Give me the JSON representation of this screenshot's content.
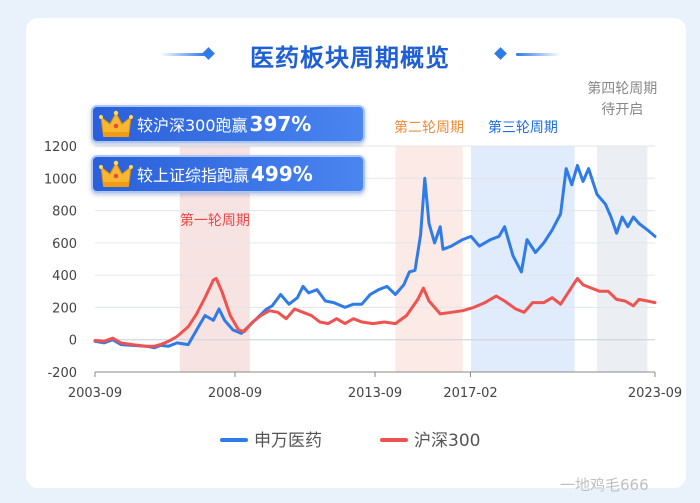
{
  "title": "医药板块周期概览",
  "badges": [
    {
      "text": "较沪深300跑赢",
      "value": "397%"
    },
    {
      "text": "较上证综指跑赢",
      "value": "499%"
    }
  ],
  "watermark": "一地鸡毛666",
  "colors": {
    "accent": "#1f5fd6",
    "series1": "#2f7be8",
    "series2": "#ef5350"
  },
  "chart_data": {
    "type": "line",
    "ylim": [
      -200,
      1200
    ],
    "yticks": [
      -200,
      0,
      200,
      400,
      600,
      800,
      1000,
      1200
    ],
    "xlim": [
      2003.67,
      2023.67
    ],
    "xticks": [
      {
        "label": "2003-09",
        "x": 2003.67
      },
      {
        "label": "2008-09",
        "x": 2008.67
      },
      {
        "label": "2013-09",
        "x": 2013.67
      },
      {
        "label": "2017-02",
        "x": 2017.08
      },
      {
        "label": "2023-09",
        "x": 2023.67
      }
    ],
    "periods": [
      {
        "label": "第一轮周期",
        "start": 2006.7,
        "end": 2009.2,
        "color": "#f7e0e0",
        "label_color": "#e84a4a"
      },
      {
        "label": "第二轮周期",
        "start": 2014.4,
        "end": 2016.8,
        "color": "#fbe8e2",
        "label_color": "#f08c3a"
      },
      {
        "label": "第三轮周期",
        "start": 2017.1,
        "end": 2020.8,
        "color": "#dde9fb",
        "label_color": "#1f6fe0"
      },
      {
        "label": "第四轮周期",
        "label2": "待开启",
        "start": 2021.6,
        "end": 2023.4,
        "color": "#e9ecf1",
        "label_color": "#888888"
      }
    ],
    "series": [
      {
        "name": "申万医药",
        "color": "#2f7be8",
        "points": [
          [
            2003.67,
            -10
          ],
          [
            2004.0,
            -20
          ],
          [
            2004.3,
            0
          ],
          [
            2004.6,
            -30
          ],
          [
            2005.0,
            -35
          ],
          [
            2005.5,
            -40
          ],
          [
            2005.8,
            -50
          ],
          [
            2006.0,
            -35
          ],
          [
            2006.3,
            -40
          ],
          [
            2006.6,
            -20
          ],
          [
            2007.0,
            -30
          ],
          [
            2007.3,
            60
          ],
          [
            2007.6,
            150
          ],
          [
            2007.9,
            120
          ],
          [
            2008.1,
            190
          ],
          [
            2008.3,
            120
          ],
          [
            2008.6,
            60
          ],
          [
            2008.9,
            40
          ],
          [
            2009.2,
            90
          ],
          [
            2009.5,
            140
          ],
          [
            2009.8,
            190
          ],
          [
            2010.0,
            210
          ],
          [
            2010.3,
            280
          ],
          [
            2010.6,
            220
          ],
          [
            2010.9,
            260
          ],
          [
            2011.1,
            330
          ],
          [
            2011.3,
            290
          ],
          [
            2011.6,
            310
          ],
          [
            2011.9,
            240
          ],
          [
            2012.2,
            230
          ],
          [
            2012.6,
            200
          ],
          [
            2012.9,
            220
          ],
          [
            2013.2,
            220
          ],
          [
            2013.5,
            280
          ],
          [
            2013.8,
            310
          ],
          [
            2014.1,
            330
          ],
          [
            2014.4,
            280
          ],
          [
            2014.7,
            340
          ],
          [
            2014.9,
            420
          ],
          [
            2015.1,
            430
          ],
          [
            2015.3,
            650
          ],
          [
            2015.45,
            1000
          ],
          [
            2015.6,
            720
          ],
          [
            2015.8,
            600
          ],
          [
            2016.0,
            700
          ],
          [
            2016.1,
            560
          ],
          [
            2016.4,
            580
          ],
          [
            2016.8,
            620
          ],
          [
            2017.1,
            640
          ],
          [
            2017.4,
            580
          ],
          [
            2017.8,
            620
          ],
          [
            2018.1,
            640
          ],
          [
            2018.3,
            700
          ],
          [
            2018.6,
            520
          ],
          [
            2018.9,
            420
          ],
          [
            2019.1,
            620
          ],
          [
            2019.4,
            540
          ],
          [
            2019.7,
            600
          ],
          [
            2020.0,
            680
          ],
          [
            2020.3,
            780
          ],
          [
            2020.5,
            1060
          ],
          [
            2020.7,
            960
          ],
          [
            2020.9,
            1080
          ],
          [
            2021.1,
            980
          ],
          [
            2021.3,
            1060
          ],
          [
            2021.6,
            900
          ],
          [
            2021.9,
            840
          ],
          [
            2022.1,
            760
          ],
          [
            2022.3,
            660
          ],
          [
            2022.5,
            760
          ],
          [
            2022.7,
            700
          ],
          [
            2022.9,
            760
          ],
          [
            2023.1,
            720
          ],
          [
            2023.4,
            680
          ],
          [
            2023.67,
            640
          ]
        ]
      },
      {
        "name": "沪深300",
        "color": "#ef5350",
        "points": [
          [
            2003.67,
            -5
          ],
          [
            2004.0,
            -10
          ],
          [
            2004.3,
            10
          ],
          [
            2004.6,
            -20
          ],
          [
            2005.0,
            -30
          ],
          [
            2005.5,
            -40
          ],
          [
            2005.8,
            -40
          ],
          [
            2006.0,
            -30
          ],
          [
            2006.3,
            -10
          ],
          [
            2006.6,
            20
          ],
          [
            2007.0,
            80
          ],
          [
            2007.3,
            160
          ],
          [
            2007.6,
            260
          ],
          [
            2007.9,
            370
          ],
          [
            2008.0,
            380
          ],
          [
            2008.2,
            300
          ],
          [
            2008.5,
            150
          ],
          [
            2008.8,
            60
          ],
          [
            2009.0,
            50
          ],
          [
            2009.3,
            110
          ],
          [
            2009.6,
            150
          ],
          [
            2009.9,
            180
          ],
          [
            2010.2,
            170
          ],
          [
            2010.5,
            130
          ],
          [
            2010.8,
            190
          ],
          [
            2011.1,
            170
          ],
          [
            2011.4,
            150
          ],
          [
            2011.7,
            110
          ],
          [
            2012.0,
            100
          ],
          [
            2012.3,
            130
          ],
          [
            2012.6,
            100
          ],
          [
            2012.9,
            130
          ],
          [
            2013.2,
            110
          ],
          [
            2013.6,
            100
          ],
          [
            2014.0,
            110
          ],
          [
            2014.4,
            100
          ],
          [
            2014.8,
            150
          ],
          [
            2015.2,
            250
          ],
          [
            2015.4,
            320
          ],
          [
            2015.6,
            240
          ],
          [
            2015.8,
            200
          ],
          [
            2016.0,
            160
          ],
          [
            2016.4,
            170
          ],
          [
            2016.8,
            180
          ],
          [
            2017.2,
            200
          ],
          [
            2017.6,
            230
          ],
          [
            2018.0,
            270
          ],
          [
            2018.3,
            240
          ],
          [
            2018.7,
            190
          ],
          [
            2019.0,
            170
          ],
          [
            2019.3,
            230
          ],
          [
            2019.7,
            230
          ],
          [
            2020.0,
            260
          ],
          [
            2020.3,
            220
          ],
          [
            2020.6,
            300
          ],
          [
            2020.9,
            380
          ],
          [
            2021.1,
            340
          ],
          [
            2021.4,
            320
          ],
          [
            2021.7,
            300
          ],
          [
            2022.0,
            300
          ],
          [
            2022.3,
            250
          ],
          [
            2022.6,
            240
          ],
          [
            2022.9,
            210
          ],
          [
            2023.1,
            250
          ],
          [
            2023.4,
            240
          ],
          [
            2023.67,
            230
          ]
        ]
      }
    ]
  }
}
